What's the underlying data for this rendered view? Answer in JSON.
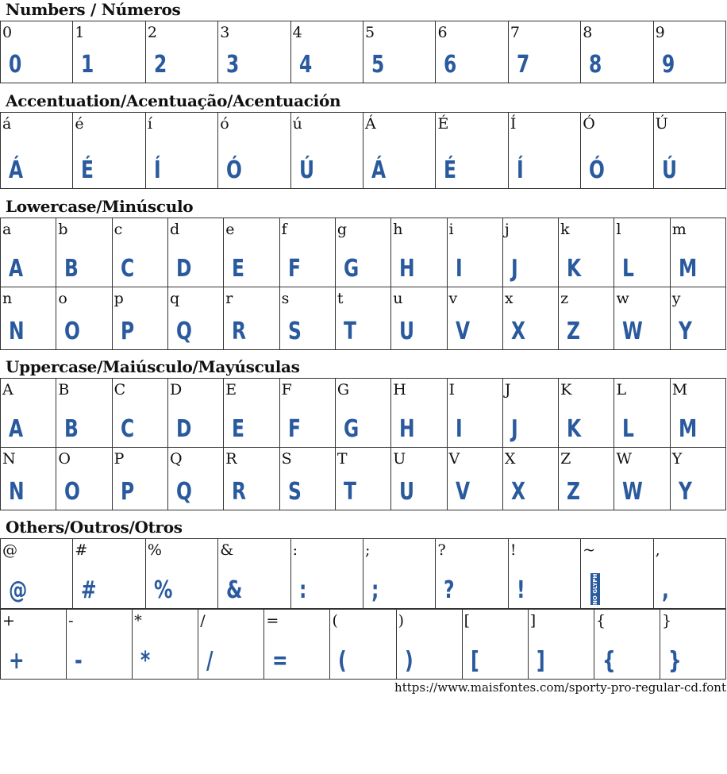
{
  "glyph_color": "#2a5a9e",
  "sections": [
    {
      "title": "Numbers / Números",
      "rows": [
        [
          [
            "0",
            "0"
          ],
          [
            "1",
            "1"
          ],
          [
            "2",
            "2"
          ],
          [
            "3",
            "3"
          ],
          [
            "4",
            "4"
          ],
          [
            "5",
            "5"
          ],
          [
            "6",
            "6"
          ],
          [
            "7",
            "7"
          ],
          [
            "8",
            "8"
          ],
          [
            "9",
            "9"
          ]
        ]
      ]
    },
    {
      "title": "Accentuation/Acentuação/Acentuación",
      "rows": [
        [
          [
            "á",
            "Á"
          ],
          [
            "é",
            "É"
          ],
          [
            "í",
            "Í"
          ],
          [
            "ó",
            "Ó"
          ],
          [
            "ú",
            "Ú"
          ],
          [
            "Á",
            "Á"
          ],
          [
            "É",
            "É"
          ],
          [
            "Í",
            "Í"
          ],
          [
            "Ó",
            "Ó"
          ],
          [
            "Ú",
            "Ú"
          ]
        ]
      ]
    },
    {
      "title": "Lowercase/Minúsculo",
      "rows": [
        [
          [
            "a",
            "A"
          ],
          [
            "b",
            "B"
          ],
          [
            "c",
            "C"
          ],
          [
            "d",
            "D"
          ],
          [
            "e",
            "E"
          ],
          [
            "f",
            "F"
          ],
          [
            "g",
            "G"
          ],
          [
            "h",
            "H"
          ],
          [
            "i",
            "I"
          ],
          [
            "j",
            "J"
          ],
          [
            "k",
            "K"
          ],
          [
            "l",
            "L"
          ],
          [
            "m",
            "M"
          ]
        ],
        [
          [
            "n",
            "N"
          ],
          [
            "o",
            "O"
          ],
          [
            "p",
            "P"
          ],
          [
            "q",
            "Q"
          ],
          [
            "r",
            "R"
          ],
          [
            "s",
            "S"
          ],
          [
            "t",
            "T"
          ],
          [
            "u",
            "U"
          ],
          [
            "v",
            "V"
          ],
          [
            "x",
            "X"
          ],
          [
            "z",
            "Z"
          ],
          [
            "w",
            "W"
          ],
          [
            "y",
            "Y"
          ]
        ]
      ]
    },
    {
      "title": "Uppercase/Maiúsculo/Mayúsculas",
      "rows": [
        [
          [
            "A",
            "A"
          ],
          [
            "B",
            "B"
          ],
          [
            "C",
            "C"
          ],
          [
            "D",
            "D"
          ],
          [
            "E",
            "E"
          ],
          [
            "F",
            "F"
          ],
          [
            "G",
            "G"
          ],
          [
            "H",
            "H"
          ],
          [
            "I",
            "I"
          ],
          [
            "J",
            "J"
          ],
          [
            "K",
            "K"
          ],
          [
            "L",
            "L"
          ],
          [
            "M",
            "M"
          ]
        ],
        [
          [
            "N",
            "N"
          ],
          [
            "O",
            "O"
          ],
          [
            "P",
            "P"
          ],
          [
            "Q",
            "Q"
          ],
          [
            "R",
            "R"
          ],
          [
            "S",
            "S"
          ],
          [
            "T",
            "T"
          ],
          [
            "U",
            "U"
          ],
          [
            "V",
            "V"
          ],
          [
            "X",
            "X"
          ],
          [
            "Z",
            "Z"
          ],
          [
            "W",
            "W"
          ],
          [
            "Y",
            "Y"
          ]
        ]
      ]
    },
    {
      "title": "Others/Outros/Otros",
      "rows": [
        [
          [
            "@",
            "@"
          ],
          [
            "#",
            "#"
          ],
          [
            "%",
            "%"
          ],
          [
            "&",
            "&"
          ],
          [
            ":",
            ":"
          ],
          [
            ";",
            ";"
          ],
          [
            "?",
            "?"
          ],
          [
            "!",
            "!"
          ],
          [
            "~",
            "NO GLYPH"
          ],
          [
            ",",
            ","
          ]
        ],
        [
          [
            "+",
            "+"
          ],
          [
            "-",
            "-"
          ],
          [
            "*",
            "*"
          ],
          [
            "/",
            "/"
          ],
          [
            "=",
            "="
          ],
          [
            "(",
            "("
          ],
          [
            ")",
            ")"
          ],
          [
            "[",
            "["
          ],
          [
            "]",
            "]"
          ],
          [
            "{",
            "{"
          ],
          [
            "}",
            "}"
          ]
        ]
      ]
    }
  ],
  "footer_url": "https://www.maisfontes.com/sporty-pro-regular-cd.font"
}
